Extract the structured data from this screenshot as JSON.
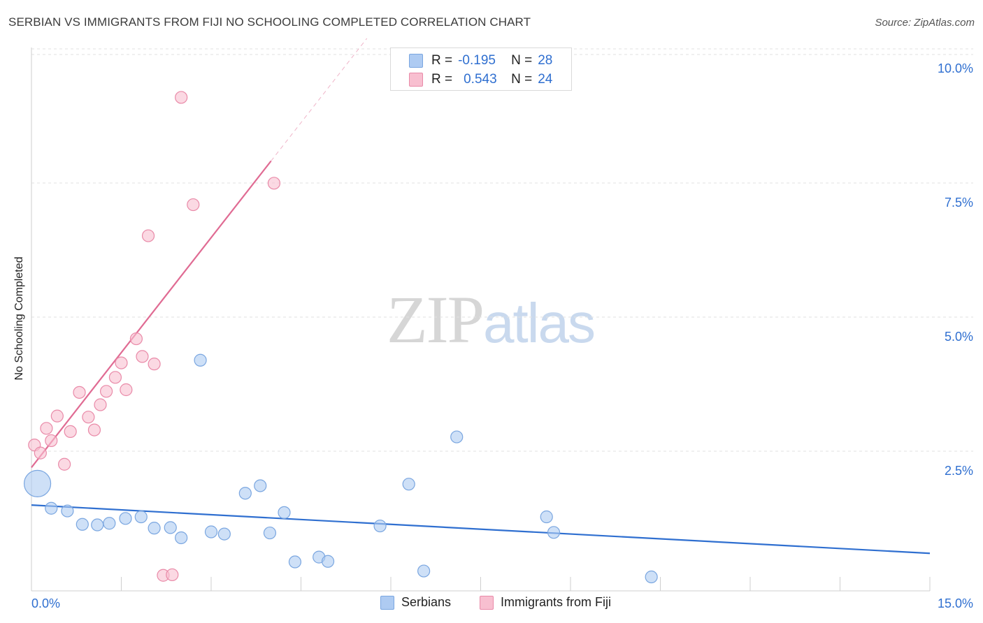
{
  "header": {
    "title": "SERBIAN VS IMMIGRANTS FROM FIJI NO SCHOOLING COMPLETED CORRELATION CHART",
    "source": "Source: ZipAtlas.com"
  },
  "watermark": {
    "zip": "ZIP",
    "atlas": "atlas"
  },
  "legend": {
    "rows": [
      {
        "r_label": "R =",
        "r_value": "-0.195",
        "n_label": "N =",
        "n_value": "28",
        "color": "#aecbf2",
        "border": "#7aa6e0"
      },
      {
        "r_label": "R =",
        "r_value": "0.543",
        "n_label": "N =",
        "n_value": "24",
        "color": "#f8bfd0",
        "border": "#e98aa8"
      }
    ]
  },
  "bottom_legend": {
    "serbians": "Serbians",
    "fiji": "Immigrants from Fiji"
  },
  "chart_data": {
    "type": "scatter",
    "title": "SERBIAN VS IMMIGRANTS FROM FIJI NO SCHOOLING COMPLETED CORRELATION CHART",
    "xlabel": "",
    "ylabel": "No Schooling Completed",
    "xlim": [
      0,
      15
    ],
    "ylim": [
      0,
      10
    ],
    "x_tick_labels": [
      {
        "value": 0,
        "label": "0.0%"
      },
      {
        "value": 15,
        "label": "15.0%"
      }
    ],
    "x_minor_ticks": [
      1.5,
      3,
      4.5,
      6,
      7.5,
      9,
      10.5,
      12,
      13.5,
      15
    ],
    "y_ticks": [
      {
        "value": 2.5,
        "label": "2.5%"
      },
      {
        "value": 5.0,
        "label": "5.0%"
      },
      {
        "value": 7.5,
        "label": "7.5%"
      },
      {
        "value": 10.0,
        "label": "10.0%"
      }
    ],
    "grid": true,
    "series": [
      {
        "name": "Serbians",
        "color": "#aecbf2",
        "stroke": "#7aa6e0",
        "line_color": "#2f6fd0",
        "trend": {
          "x0": 0,
          "y0": 1.6,
          "x1": 15,
          "y1": 0.7,
          "solid_until": 15
        },
        "points": [
          {
            "x": 0.1,
            "y": 2.0,
            "size": "large"
          },
          {
            "x": 0.33,
            "y": 1.54
          },
          {
            "x": 0.6,
            "y": 1.49
          },
          {
            "x": 0.85,
            "y": 1.24
          },
          {
            "x": 1.1,
            "y": 1.23
          },
          {
            "x": 1.3,
            "y": 1.26
          },
          {
            "x": 1.57,
            "y": 1.35
          },
          {
            "x": 1.83,
            "y": 1.38
          },
          {
            "x": 2.05,
            "y": 1.17
          },
          {
            "x": 2.32,
            "y": 1.18
          },
          {
            "x": 2.5,
            "y": 0.99
          },
          {
            "x": 2.82,
            "y": 4.3
          },
          {
            "x": 3.0,
            "y": 1.1
          },
          {
            "x": 3.22,
            "y": 1.06
          },
          {
            "x": 3.57,
            "y": 1.82
          },
          {
            "x": 3.82,
            "y": 1.96
          },
          {
            "x": 3.98,
            "y": 1.08
          },
          {
            "x": 4.22,
            "y": 1.46
          },
          {
            "x": 4.4,
            "y": 0.54
          },
          {
            "x": 4.8,
            "y": 0.63
          },
          {
            "x": 4.95,
            "y": 0.55
          },
          {
            "x": 5.82,
            "y": 1.21
          },
          {
            "x": 6.3,
            "y": 1.99
          },
          {
            "x": 6.55,
            "y": 0.37
          },
          {
            "x": 7.1,
            "y": 2.87
          },
          {
            "x": 8.6,
            "y": 1.38
          },
          {
            "x": 8.72,
            "y": 1.09
          },
          {
            "x": 10.35,
            "y": 0.26
          }
        ]
      },
      {
        "name": "Immigrants from Fiji",
        "color": "#f8bfd0",
        "stroke": "#e98aa8",
        "line_color": "#e06b93",
        "trend": {
          "x0": 0,
          "y0": 2.3,
          "x1": 5.6,
          "y1": 10.3,
          "solid_until": 4.0
        },
        "points": [
          {
            "x": 0.05,
            "y": 2.72
          },
          {
            "x": 0.15,
            "y": 2.57
          },
          {
            "x": 0.25,
            "y": 3.03
          },
          {
            "x": 0.33,
            "y": 2.8
          },
          {
            "x": 0.43,
            "y": 3.26
          },
          {
            "x": 0.55,
            "y": 2.36
          },
          {
            "x": 0.65,
            "y": 2.97
          },
          {
            "x": 0.8,
            "y": 3.7
          },
          {
            "x": 0.95,
            "y": 3.24
          },
          {
            "x": 1.05,
            "y": 3.0
          },
          {
            "x": 1.15,
            "y": 3.47
          },
          {
            "x": 1.25,
            "y": 3.72
          },
          {
            "x": 1.4,
            "y": 3.98
          },
          {
            "x": 1.5,
            "y": 4.25
          },
          {
            "x": 1.58,
            "y": 3.75
          },
          {
            "x": 1.75,
            "y": 4.7
          },
          {
            "x": 1.85,
            "y": 4.37
          },
          {
            "x": 1.95,
            "y": 6.62
          },
          {
            "x": 2.05,
            "y": 4.23
          },
          {
            "x": 2.2,
            "y": 0.29
          },
          {
            "x": 2.35,
            "y": 0.3
          },
          {
            "x": 2.5,
            "y": 9.2
          },
          {
            "x": 2.7,
            "y": 7.2
          },
          {
            "x": 4.05,
            "y": 7.6
          }
        ]
      }
    ]
  }
}
